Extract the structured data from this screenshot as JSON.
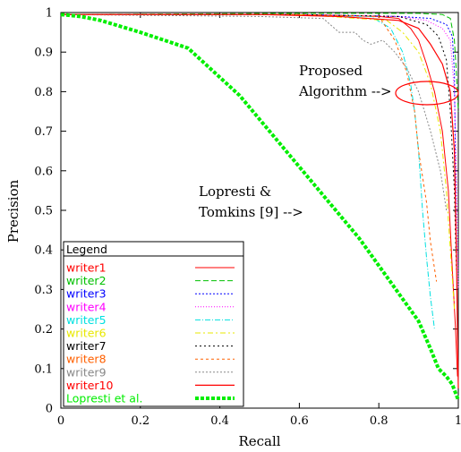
{
  "chart_data": {
    "type": "line",
    "xlabel": "Recall",
    "ylabel": "Precision",
    "xlim": [
      0,
      1
    ],
    "ylim": [
      0,
      1
    ],
    "x_ticks": [
      "0",
      "0.2",
      "0.4",
      "0.6",
      "0.8",
      "1"
    ],
    "y_ticks": [
      "0",
      "0.1",
      "0.2",
      "0.3",
      "0.4",
      "0.5",
      "0.6",
      "0.7",
      "0.8",
      "0.9",
      "1"
    ],
    "grid": false,
    "legend": {
      "title": "Legend",
      "placement": "bottom-left"
    },
    "annotations": [
      {
        "lines": [
          "Proposed",
          "Algorithm -->"
        ]
      },
      {
        "lines": [
          "Lopresti &",
          "Tomkins [9] -->"
        ]
      }
    ],
    "series": [
      {
        "name": "writer1",
        "color": "#ff0000",
        "dash": "solid",
        "width": 1,
        "points": [
          [
            0,
            0.995
          ],
          [
            0.3,
            0.995
          ],
          [
            0.6,
            0.995
          ],
          [
            0.8,
            0.99
          ],
          [
            0.85,
            0.985
          ],
          [
            0.88,
            0.96
          ],
          [
            0.9,
            0.93
          ],
          [
            0.92,
            0.87
          ],
          [
            0.94,
            0.8
          ],
          [
            0.96,
            0.7
          ],
          [
            0.975,
            0.55
          ],
          [
            0.985,
            0.35
          ],
          [
            0.993,
            0.2
          ],
          [
            0.998,
            0.08
          ]
        ]
      },
      {
        "name": "writer2",
        "color": "#00c000",
        "dash": "6,3",
        "width": 1,
        "points": [
          [
            0,
            0.995
          ],
          [
            0.6,
            0.998
          ],
          [
            0.9,
            0.998
          ],
          [
            0.96,
            0.995
          ],
          [
            0.98,
            0.985
          ],
          [
            0.99,
            0.93
          ],
          [
            0.995,
            0.85
          ],
          [
            1,
            0.75
          ]
        ]
      },
      {
        "name": "writer3",
        "color": "#0000ff",
        "dash": "2,2",
        "width": 1,
        "points": [
          [
            0,
            0.995
          ],
          [
            0.6,
            0.995
          ],
          [
            0.85,
            0.99
          ],
          [
            0.93,
            0.985
          ],
          [
            0.97,
            0.97
          ],
          [
            0.985,
            0.94
          ],
          [
            0.99,
            0.85
          ],
          [
            0.993,
            0.6
          ],
          [
            0.995,
            0.4
          ]
        ]
      },
      {
        "name": "writer4",
        "color": "#ff00ff",
        "dash": "1,2",
        "width": 1,
        "points": [
          [
            0,
            0.995
          ],
          [
            0.6,
            0.995
          ],
          [
            0.85,
            0.99
          ],
          [
            0.92,
            0.98
          ],
          [
            0.96,
            0.96
          ],
          [
            0.98,
            0.93
          ],
          [
            0.99,
            0.8
          ],
          [
            0.995,
            0.6
          ],
          [
            1,
            0.3
          ]
        ]
      },
      {
        "name": "writer5",
        "color": "#00e0e0",
        "dash": "6,2,1,2",
        "width": 1,
        "points": [
          [
            0,
            0.995
          ],
          [
            0.5,
            0.995
          ],
          [
            0.78,
            0.99
          ],
          [
            0.83,
            0.96
          ],
          [
            0.86,
            0.9
          ],
          [
            0.88,
            0.82
          ],
          [
            0.89,
            0.75
          ],
          [
            0.9,
            0.65
          ],
          [
            0.91,
            0.5
          ],
          [
            0.92,
            0.38
          ],
          [
            0.93,
            0.28
          ],
          [
            0.94,
            0.2
          ]
        ]
      },
      {
        "name": "writer6",
        "color": "#e8e800",
        "dash": "6,3,2,3",
        "width": 1,
        "points": [
          [
            0,
            0.995
          ],
          [
            0.6,
            0.995
          ],
          [
            0.82,
            0.98
          ],
          [
            0.86,
            0.95
          ],
          [
            0.9,
            0.9
          ],
          [
            0.93,
            0.82
          ],
          [
            0.955,
            0.7
          ],
          [
            0.97,
            0.55
          ],
          [
            0.98,
            0.4
          ],
          [
            0.99,
            0.25
          ]
        ]
      },
      {
        "name": "writer7",
        "color": "#000000",
        "dash": "2,3",
        "width": 1,
        "points": [
          [
            0,
            0.995
          ],
          [
            0.6,
            0.995
          ],
          [
            0.85,
            0.99
          ],
          [
            0.92,
            0.97
          ],
          [
            0.95,
            0.94
          ],
          [
            0.97,
            0.88
          ],
          [
            0.98,
            0.75
          ],
          [
            0.99,
            0.55
          ],
          [
            0.995,
            0.35
          ]
        ]
      },
      {
        "name": "writer8",
        "color": "#ff6000",
        "dash": "3,3",
        "width": 1,
        "points": [
          [
            0,
            0.995
          ],
          [
            0.6,
            0.995
          ],
          [
            0.8,
            0.99
          ],
          [
            0.84,
            0.93
          ],
          [
            0.87,
            0.85
          ],
          [
            0.89,
            0.75
          ],
          [
            0.9,
            0.65
          ],
          [
            0.92,
            0.52
          ],
          [
            0.93,
            0.42
          ],
          [
            0.945,
            0.32
          ]
        ]
      },
      {
        "name": "writer9",
        "color": "#888888",
        "dash": "2,2",
        "width": 1,
        "points": [
          [
            0,
            0.995
          ],
          [
            0.5,
            0.99
          ],
          [
            0.66,
            0.985
          ],
          [
            0.7,
            0.95
          ],
          [
            0.74,
            0.95
          ],
          [
            0.76,
            0.93
          ],
          [
            0.78,
            0.92
          ],
          [
            0.81,
            0.93
          ],
          [
            0.84,
            0.9
          ],
          [
            0.87,
            0.86
          ],
          [
            0.9,
            0.8
          ],
          [
            0.93,
            0.7
          ],
          [
            0.955,
            0.6
          ],
          [
            0.97,
            0.5
          ]
        ]
      },
      {
        "name": "writer10",
        "color": "#ff0000",
        "dash": "solid",
        "width": 1.2,
        "points": [
          [
            0,
            0.995
          ],
          [
            0.5,
            0.995
          ],
          [
            0.7,
            0.99
          ],
          [
            0.85,
            0.98
          ],
          [
            0.9,
            0.96
          ],
          [
            0.93,
            0.92
          ],
          [
            0.96,
            0.87
          ],
          [
            0.98,
            0.8
          ],
          [
            0.99,
            0.65
          ],
          [
            0.995,
            0.4
          ],
          [
            1,
            0.05
          ]
        ]
      },
      {
        "name": "Lopresti et al.",
        "color": "#00ee00",
        "dash": "4,2",
        "width": 4,
        "points": [
          [
            0,
            0.995
          ],
          [
            0.05,
            0.99
          ],
          [
            0.1,
            0.98
          ],
          [
            0.2,
            0.95
          ],
          [
            0.32,
            0.91
          ],
          [
            0.45,
            0.79
          ],
          [
            0.55,
            0.67
          ],
          [
            0.65,
            0.55
          ],
          [
            0.75,
            0.43
          ],
          [
            0.85,
            0.29
          ],
          [
            0.9,
            0.22
          ],
          [
            0.93,
            0.15
          ],
          [
            0.95,
            0.1
          ],
          [
            0.97,
            0.08
          ],
          [
            0.985,
            0.06
          ],
          [
            1,
            0.02
          ]
        ]
      }
    ]
  }
}
